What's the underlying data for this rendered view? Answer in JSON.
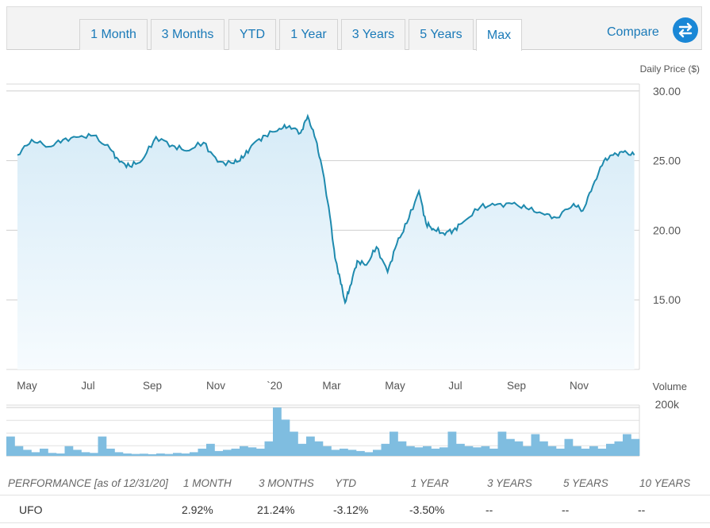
{
  "tabs": [
    {
      "label": "1 Month"
    },
    {
      "label": "3 Months"
    },
    {
      "label": "YTD"
    },
    {
      "label": "1 Year"
    },
    {
      "label": "3 Years"
    },
    {
      "label": "5 Years"
    },
    {
      "label": "Max"
    }
  ],
  "active_tab": "Max",
  "compare_label": "Compare",
  "icons": {
    "compare": "swap-arrows-icon"
  },
  "colors": {
    "line": "#1e8aae",
    "area_top": "#d6ebf7",
    "area_bottom": "#f4fafd",
    "volume": "#7fbde0",
    "accent": "#1a87d6"
  },
  "chart_data": [
    {
      "type": "area",
      "ylabel": "Daily Price ($)",
      "yticks": [
        "30.00",
        "25.00",
        "20.00",
        "15.00"
      ],
      "ylim": [
        10,
        30.5
      ],
      "grid": true,
      "xticks": [
        "May",
        "Jul",
        "Sep",
        "Nov",
        "`20",
        "Mar",
        "May",
        "Jul",
        "Sep",
        "Nov"
      ],
      "x": [
        "2019-05-01",
        "2019-05-15",
        "2019-06-01",
        "2019-06-15",
        "2019-07-01",
        "2019-07-15",
        "2019-08-01",
        "2019-08-10",
        "2019-08-20",
        "2019-09-01",
        "2019-09-15",
        "2019-10-01",
        "2019-10-15",
        "2019-11-01",
        "2019-11-15",
        "2019-12-01",
        "2019-12-10",
        "2019-12-20",
        "2020-01-01",
        "2020-01-15",
        "2020-01-25",
        "2020-02-05",
        "2020-02-12",
        "2020-02-20",
        "2020-02-27",
        "2020-03-05",
        "2020-03-10",
        "2020-03-15",
        "2020-03-20",
        "2020-03-25",
        "2020-04-01",
        "2020-04-10",
        "2020-04-20",
        "2020-05-01",
        "2020-05-10",
        "2020-05-20",
        "2020-06-01",
        "2020-06-08",
        "2020-06-15",
        "2020-06-25",
        "2020-07-05",
        "2020-07-15",
        "2020-08-01",
        "2020-08-15",
        "2020-09-01",
        "2020-09-15",
        "2020-10-01",
        "2020-10-15",
        "2020-11-01",
        "2020-11-10",
        "2020-11-20",
        "2020-12-01",
        "2020-12-10",
        "2020-12-20",
        "2020-12-31"
      ],
      "values": [
        25.4,
        26.5,
        26.0,
        26.5,
        26.7,
        26.8,
        25.8,
        24.9,
        24.6,
        25.0,
        26.7,
        26.1,
        25.7,
        26.3,
        24.9,
        24.8,
        25.2,
        26.2,
        26.8,
        27.3,
        27.5,
        27.0,
        28.2,
        26.5,
        24.2,
        21.0,
        18.0,
        16.5,
        14.8,
        16.0,
        17.8,
        17.5,
        18.8,
        17.0,
        19.0,
        20.5,
        22.8,
        20.5,
        20.1,
        19.8,
        20.0,
        20.6,
        21.7,
        21.8,
        21.9,
        21.6,
        21.2,
        20.9,
        21.9,
        21.4,
        23.2,
        25.0,
        25.4,
        25.6,
        25.4
      ]
    },
    {
      "type": "bar",
      "ylabel": "Volume",
      "yticks": [
        "200k"
      ],
      "ylim": [
        0,
        210000
      ],
      "values": [
        80000,
        40000,
        25000,
        15000,
        30000,
        12000,
        10000,
        40000,
        25000,
        15000,
        12000,
        80000,
        30000,
        15000,
        10000,
        8000,
        9000,
        7000,
        10000,
        8000,
        12000,
        10000,
        15000,
        30000,
        50000,
        20000,
        25000,
        30000,
        40000,
        35000,
        30000,
        60000,
        200000,
        150000,
        100000,
        50000,
        80000,
        60000,
        40000,
        25000,
        30000,
        25000,
        20000,
        15000,
        25000,
        50000,
        100000,
        60000,
        40000,
        35000,
        40000,
        30000,
        35000,
        100000,
        50000,
        40000,
        35000,
        40000,
        30000,
        100000,
        70000,
        60000,
        40000,
        90000,
        60000,
        40000,
        30000,
        70000,
        40000,
        30000,
        40000,
        30000,
        50000,
        60000,
        90000,
        70000
      ]
    }
  ],
  "performance": {
    "header_label": "PERFORMANCE [as of 12/31/20]",
    "columns": [
      "1 MONTH",
      "3 MONTHS",
      "YTD",
      "1 YEAR",
      "3 YEARS",
      "5 YEARS",
      "10 YEARS"
    ],
    "rows": [
      {
        "symbol": "UFO",
        "values": [
          "2.92%",
          "21.24%",
          "-3.12%",
          "-3.50%",
          "--",
          "--",
          "--"
        ]
      }
    ]
  }
}
